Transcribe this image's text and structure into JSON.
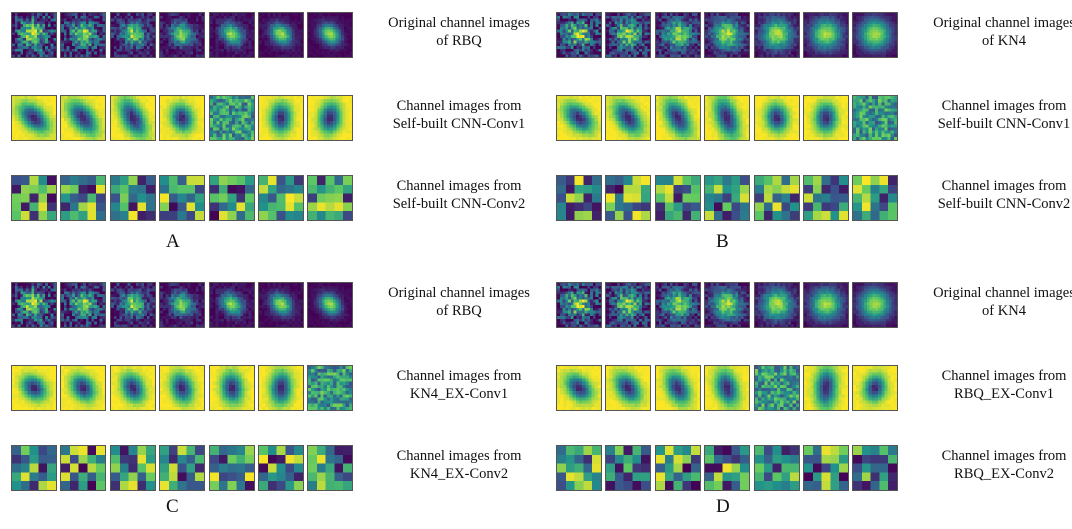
{
  "colormap": [
    "#440154",
    "#3b528b",
    "#21918c",
    "#5ec962",
    "#fde725"
  ],
  "panels": [
    {
      "label": "A",
      "rows": [
        {
          "kind": "original",
          "variant": "RBQ",
          "caption": [
            "Original channel images",
            "of RBQ"
          ]
        },
        {
          "kind": "conv1",
          "variant": "a",
          "caption": [
            "Channel images from",
            "Self-built CNN-Conv1"
          ]
        },
        {
          "kind": "conv2",
          "variant": "a",
          "caption": [
            "Channel images from",
            "Self-built CNN-Conv2"
          ]
        }
      ]
    },
    {
      "label": "B",
      "rows": [
        {
          "kind": "original",
          "variant": "KN4",
          "caption": [
            "Original channel images",
            "of KN4"
          ]
        },
        {
          "kind": "conv1",
          "variant": "b",
          "caption": [
            "Channel images from",
            "Self-built CNN-Conv1"
          ]
        },
        {
          "kind": "conv2",
          "variant": "b",
          "caption": [
            "Channel images from",
            "Self-built CNN-Conv2"
          ]
        }
      ]
    },
    {
      "label": "C",
      "rows": [
        {
          "kind": "original",
          "variant": "RBQ",
          "caption": [
            "Original channel images",
            "of RBQ"
          ]
        },
        {
          "kind": "conv1",
          "variant": "c",
          "caption": [
            "Channel images from",
            "KN4_EX-Conv1"
          ]
        },
        {
          "kind": "conv2",
          "variant": "c",
          "caption": [
            "Channel images from",
            "KN4_EX-Conv2"
          ]
        }
      ]
    },
    {
      "label": "D",
      "rows": [
        {
          "kind": "original",
          "variant": "KN4",
          "caption": [
            "Original channel images",
            "of KN4"
          ]
        },
        {
          "kind": "conv1",
          "variant": "d",
          "caption": [
            "Channel images from",
            "RBQ_EX-Conv1"
          ]
        },
        {
          "kind": "conv2",
          "variant": "d",
          "caption": [
            "Channel images from",
            "RBQ_EX-Conv2"
          ]
        }
      ]
    }
  ]
}
